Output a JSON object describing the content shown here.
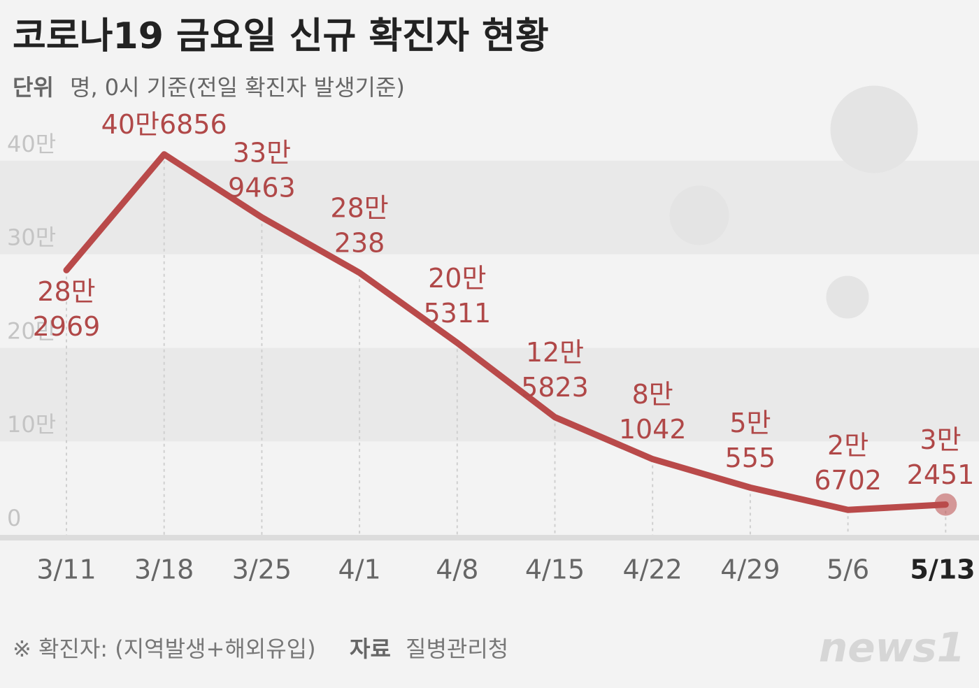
{
  "chart_data": {
    "type": "line",
    "title": "코로나19 금요일 신규 확진자 현황",
    "unit_label": "단위",
    "subtitle": "명, 0시 기준(전일 확진자 발생기준)",
    "categories": [
      "3/11",
      "3/18",
      "3/25",
      "4/1",
      "4/8",
      "4/15",
      "4/22",
      "4/29",
      "5/6",
      "5/13"
    ],
    "series": [
      {
        "name": "신규 확진자",
        "color": "#b94a4a",
        "values": [
          282969,
          406856,
          339463,
          280238,
          205311,
          125823,
          81042,
          50555,
          26702,
          32451
        ],
        "value_labels": [
          [
            "28만",
            "2969"
          ],
          [
            "40만6856"
          ],
          [
            "33만",
            "9463"
          ],
          [
            "28만",
            "238"
          ],
          [
            "20만",
            "5311"
          ],
          [
            "12만",
            "5823"
          ],
          [
            "8만",
            "1042"
          ],
          [
            "5만",
            "555"
          ],
          [
            "2만",
            "6702"
          ],
          [
            "3만",
            "2451"
          ]
        ]
      }
    ],
    "ylim": [
      0,
      450000
    ],
    "yticks": [
      {
        "value": 0,
        "label": "0"
      },
      {
        "value": 100000,
        "label": "10만"
      },
      {
        "value": 200000,
        "label": "20만"
      },
      {
        "value": 300000,
        "label": "30만"
      },
      {
        "value": 400000,
        "label": "40만"
      }
    ],
    "footnote": "※ 확진자: (지역발생+해외유입)",
    "source_label": "자료",
    "source": "질병관리청",
    "logo": "news1"
  }
}
